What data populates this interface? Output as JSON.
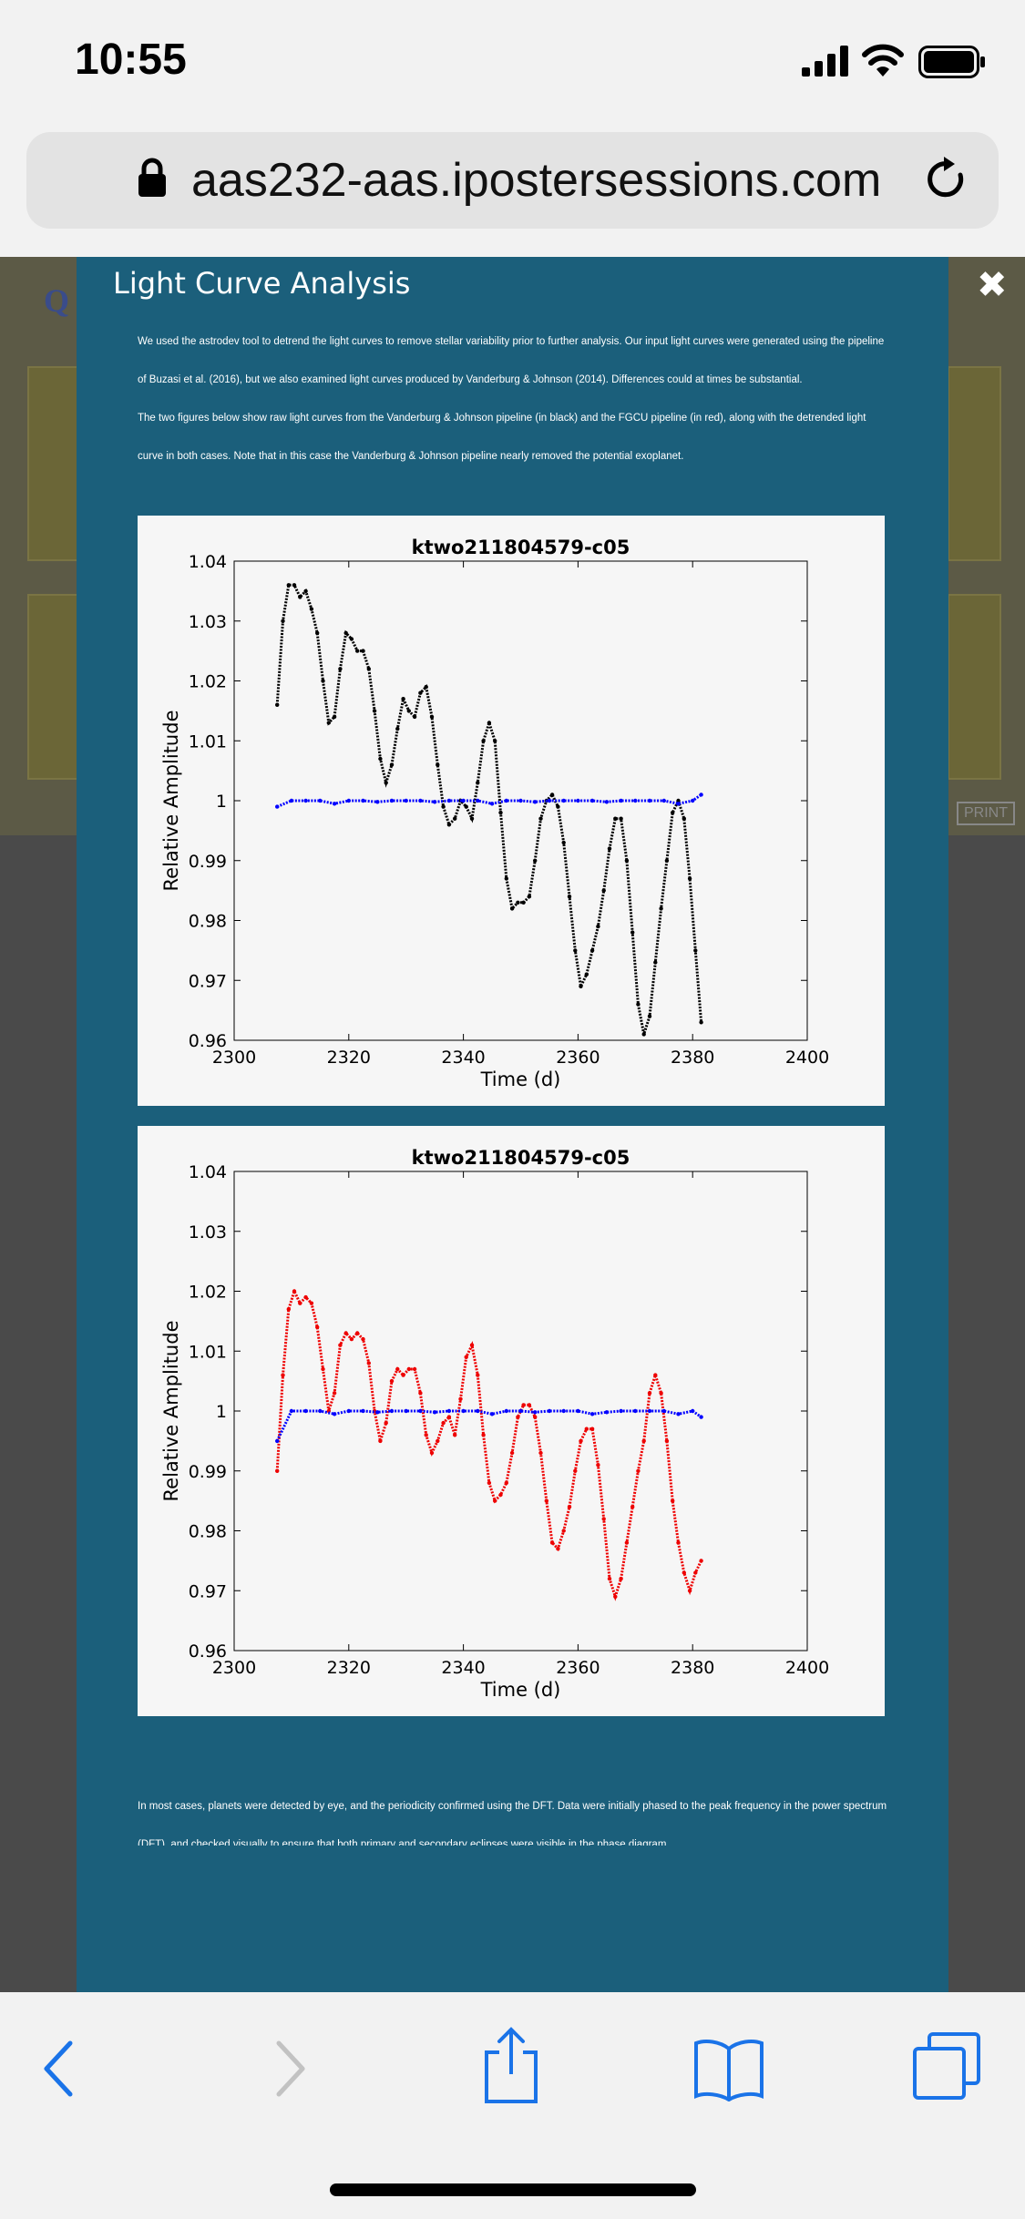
{
  "status_bar": {
    "time": "10:55"
  },
  "browser": {
    "url": "aas232-aas.ipostersessions.com"
  },
  "background_page": {
    "print_label": "PRINT"
  },
  "modal": {
    "title": "Light Curve Analysis",
    "close_glyph": "✖",
    "intro_paragraphs": [
      "We used the astrodev tool to detrend the light curves to remove stellar variability prior to further analysis. Our input light curves were generated using the pipeline of Buzasi et al. (2016), but we also examined light curves produced by Vanderburg & Johnson (2014). Differences could at times be substantial.",
      "The two figures below show raw light curves from the Vanderburg & Johnson pipeline (in black) and the FGCU pipeline (in red), along with the detrended light curve in both cases. Note that in this case the Vanderburg & Johnson pipeline nearly removed the potential exoplanet."
    ],
    "outro": "In most cases, planets were detected by eye, and the periodicity confirmed using the DFT. Data were initially phased to the peak frequency in the power spectrum (DFT), and checked visually to ensure that both primary and secondary eclipses were visible in the phase diagram."
  },
  "chart_data": [
    {
      "type": "scatter",
      "title": "ktwo211804579-c05",
      "xlabel": "Time (d)",
      "ylabel": "Relative Amplitude",
      "xlim": [
        2300,
        2400
      ],
      "ylim": [
        0.96,
        1.04
      ],
      "xticks": [
        "2300",
        "2320",
        "2340",
        "2360",
        "2380",
        "2400"
      ],
      "yticks": [
        "0.96",
        "0.97",
        "0.98",
        "0.99",
        "1",
        "1.01",
        "1.02",
        "1.03",
        "1.04"
      ],
      "grid": false,
      "series": [
        {
          "color": "#000000",
          "x": [
            2307.5,
            2308.5,
            2309.5,
            2310.5,
            2311.5,
            2312.5,
            2313.5,
            2314.5,
            2315.5,
            2316.5,
            2317.5,
            2318.5,
            2319.5,
            2320.5,
            2321.5,
            2322.5,
            2323.5,
            2324.5,
            2325.5,
            2326.5,
            2327.5,
            2328.5,
            2329.5,
            2330.5,
            2331.5,
            2332.5,
            2333.5,
            2334.5,
            2335.5,
            2336.5,
            2337.5,
            2338.5,
            2339.5,
            2340.5,
            2341.5,
            2342.5,
            2343.5,
            2344.5,
            2345.5,
            2346.5,
            2347.5,
            2348.5,
            2349.5,
            2350.5,
            2351.5,
            2352.5,
            2353.5,
            2354.5,
            2355.5,
            2356.5,
            2357.5,
            2358.5,
            2359.5,
            2360.5,
            2361.5,
            2362.5,
            2363.5,
            2364.5,
            2365.5,
            2366.5,
            2367.5,
            2368.5,
            2369.5,
            2370.5,
            2371.5,
            2372.5,
            2373.5,
            2374.5,
            2375.5,
            2376.5,
            2377.5,
            2378.5,
            2379.5,
            2380.5,
            2381.5
          ],
          "y": [
            1.016,
            1.03,
            1.036,
            1.036,
            1.034,
            1.035,
            1.032,
            1.028,
            1.02,
            1.013,
            1.014,
            1.022,
            1.028,
            1.027,
            1.025,
            1.025,
            1.022,
            1.015,
            1.007,
            1.003,
            1.006,
            1.012,
            1.017,
            1.015,
            1.014,
            1.018,
            1.019,
            1.014,
            1.006,
            0.999,
            0.996,
            0.997,
            1.0,
            0.999,
            0.997,
            1.003,
            1.01,
            1.013,
            1.01,
            0.998,
            0.987,
            0.982,
            0.983,
            0.983,
            0.984,
            0.99,
            0.997,
            1.0,
            1.001,
            0.999,
            0.993,
            0.984,
            0.975,
            0.969,
            0.971,
            0.975,
            0.979,
            0.985,
            0.992,
            0.997,
            0.997,
            0.99,
            0.978,
            0.966,
            0.961,
            0.964,
            0.973,
            0.982,
            0.99,
            0.998,
            1.0,
            0.997,
            0.987,
            0.975,
            0.963
          ]
        },
        {
          "color": "#0000ff",
          "x": [
            2307.5,
            2310,
            2312.5,
            2315,
            2317.5,
            2320,
            2322.5,
            2325,
            2327.5,
            2330,
            2332.5,
            2335,
            2337.5,
            2340,
            2342.5,
            2345,
            2347.5,
            2350,
            2352.5,
            2355,
            2357.5,
            2360,
            2362.5,
            2365,
            2367.5,
            2370,
            2372.5,
            2375,
            2377.5,
            2380,
            2381.5
          ],
          "y": [
            0.999,
            1.0,
            1.0,
            1.0,
            0.9995,
            1.0,
            1.0,
            0.9998,
            1.0,
            1.0,
            1.0,
            0.9998,
            1.0,
            1.0,
            1.0,
            0.9995,
            1.0,
            1.0,
            0.9998,
            1.0,
            1.0,
            1.0,
            1.0,
            0.9998,
            1.0,
            1.0,
            1.0,
            1.0,
            0.9995,
            1.0,
            1.001
          ]
        }
      ]
    },
    {
      "type": "scatter",
      "title": "ktwo211804579-c05",
      "xlabel": "Time (d)",
      "ylabel": "Relative Amplitude",
      "xlim": [
        2300,
        2400
      ],
      "ylim": [
        0.96,
        1.04
      ],
      "xticks": [
        "2300",
        "2320",
        "2340",
        "2360",
        "2380",
        "2400"
      ],
      "yticks": [
        "0.96",
        "0.97",
        "0.98",
        "0.99",
        "1",
        "1.01",
        "1.02",
        "1.03",
        "1.04"
      ],
      "grid": false,
      "series": [
        {
          "color": "#ee0000",
          "x": [
            2307.5,
            2308.5,
            2309.5,
            2310.5,
            2311.5,
            2312.5,
            2313.5,
            2314.5,
            2315.5,
            2316.5,
            2317.5,
            2318.5,
            2319.5,
            2320.5,
            2321.5,
            2322.5,
            2323.5,
            2324.5,
            2325.5,
            2326.5,
            2327.5,
            2328.5,
            2329.5,
            2330.5,
            2331.5,
            2332.5,
            2333.5,
            2334.5,
            2335.5,
            2336.5,
            2337.5,
            2338.5,
            2339.5,
            2340.5,
            2341.5,
            2342.5,
            2343.5,
            2344.5,
            2345.5,
            2346.5,
            2347.5,
            2348.5,
            2349.5,
            2350.5,
            2351.5,
            2352.5,
            2353.5,
            2354.5,
            2355.5,
            2356.5,
            2357.5,
            2358.5,
            2359.5,
            2360.5,
            2361.5,
            2362.5,
            2363.5,
            2364.5,
            2365.5,
            2366.5,
            2367.5,
            2368.5,
            2369.5,
            2370.5,
            2371.5,
            2372.5,
            2373.5,
            2374.5,
            2375.5,
            2376.5,
            2377.5,
            2378.5,
            2379.5,
            2380.5,
            2381.5
          ],
          "y": [
            0.99,
            1.006,
            1.017,
            1.02,
            1.018,
            1.019,
            1.018,
            1.014,
            1.007,
            1.0,
            1.003,
            1.011,
            1.013,
            1.012,
            1.013,
            1.012,
            1.008,
            1.0,
            0.995,
            0.998,
            1.005,
            1.007,
            1.006,
            1.007,
            1.007,
            1.003,
            0.996,
            0.993,
            0.995,
            0.998,
            0.999,
            0.996,
            1.002,
            1.009,
            1.011,
            1.006,
            0.996,
            0.988,
            0.985,
            0.986,
            0.988,
            0.993,
            0.999,
            1.001,
            1.001,
            0.999,
            0.993,
            0.985,
            0.978,
            0.977,
            0.98,
            0.984,
            0.99,
            0.995,
            0.997,
            0.997,
            0.991,
            0.982,
            0.972,
            0.969,
            0.972,
            0.978,
            0.984,
            0.99,
            0.995,
            1.003,
            1.006,
            1.003,
            0.995,
            0.985,
            0.978,
            0.973,
            0.97,
            0.973,
            0.975
          ]
        },
        {
          "color": "#0000ff",
          "x": [
            2307.5,
            2310,
            2312.5,
            2315,
            2317.5,
            2320,
            2322.5,
            2325,
            2327.5,
            2330,
            2332.5,
            2335,
            2337.5,
            2340,
            2342.5,
            2345,
            2347.5,
            2350,
            2352.5,
            2355,
            2357.5,
            2360,
            2362.5,
            2365,
            2367.5,
            2370,
            2372.5,
            2375,
            2377.5,
            2380,
            2381.5
          ],
          "y": [
            0.995,
            1.0,
            1.0,
            1.0,
            0.9995,
            1.0,
            1.0,
            0.9998,
            1.0,
            1.0,
            1.0,
            0.9998,
            1.0,
            1.0,
            1.0,
            0.9995,
            1.0,
            1.0,
            0.9998,
            1.0,
            1.0,
            1.0,
            0.9995,
            0.9998,
            1.0,
            1.0,
            1.0,
            1.0,
            0.9995,
            1.0,
            0.999
          ]
        }
      ]
    }
  ]
}
